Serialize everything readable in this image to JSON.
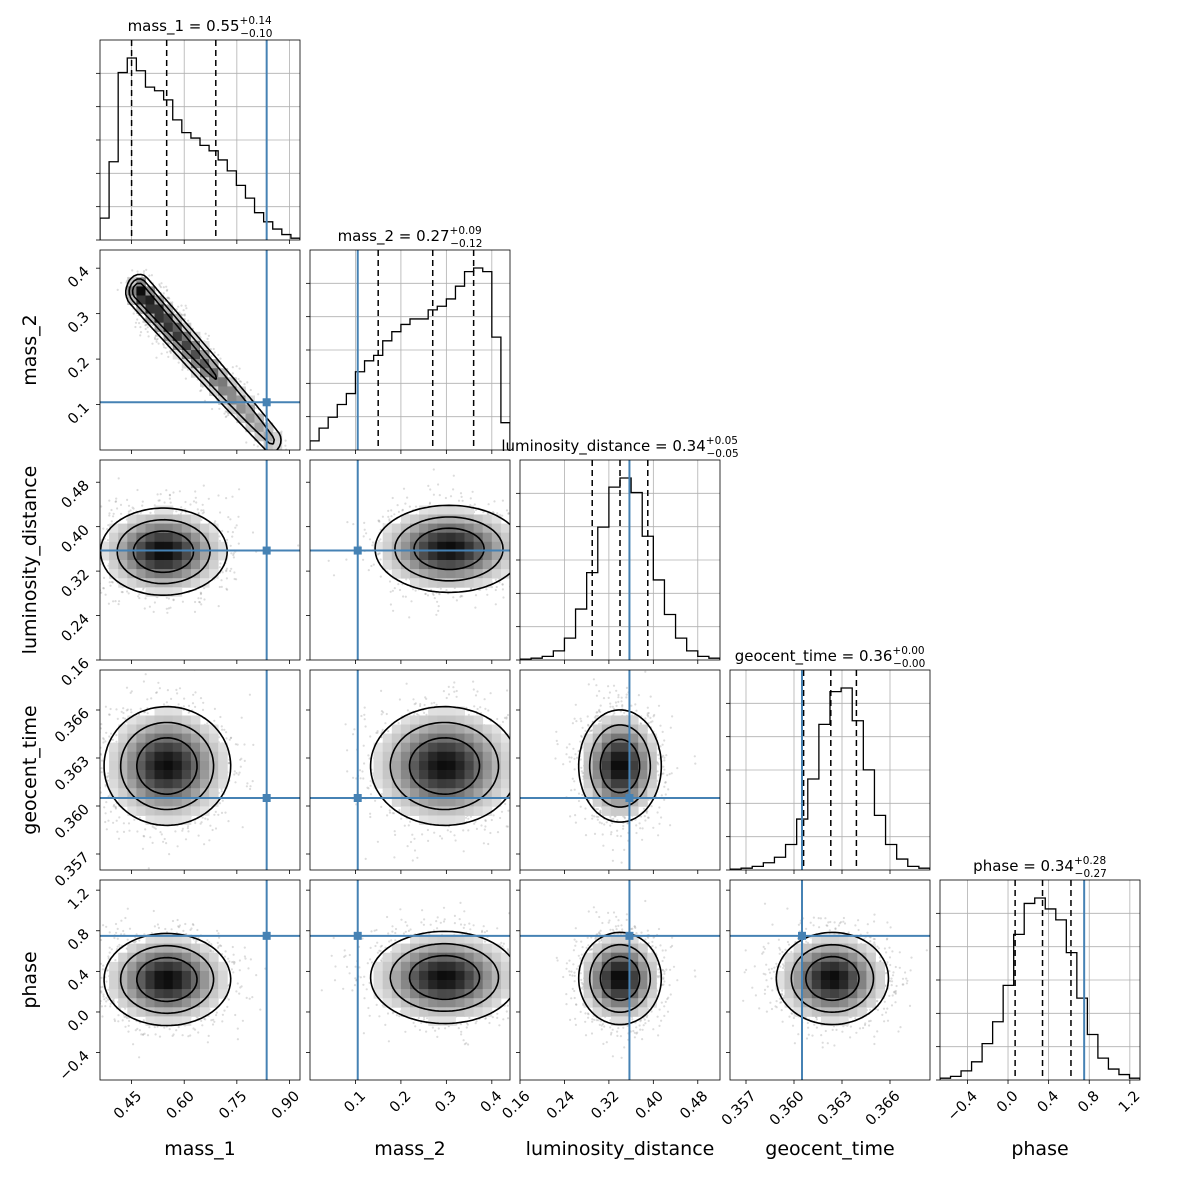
{
  "chart_data": {
    "type": "corner",
    "parameters": [
      "mass_1",
      "mass_2",
      "luminosity_distance",
      "geocent_time",
      "phase"
    ],
    "axis_labels": {
      "mass_1": "mass_1",
      "mass_2": "mass_2",
      "luminosity_distance": "luminosity_distance",
      "geocent_time": "geocent_time",
      "phase": "phase"
    },
    "ranges": {
      "mass_1": [
        0.36,
        0.93
      ],
      "mass_2": [
        0.0,
        0.44
      ],
      "luminosity_distance": [
        0.16,
        0.52
      ],
      "geocent_time": [
        0.356,
        0.3685
      ],
      "phase": [
        -0.67,
        1.3
      ]
    },
    "ticks": {
      "mass_1": [
        0.45,
        0.6,
        0.75,
        0.9
      ],
      "mass_2": [
        0.1,
        0.2,
        0.3,
        0.4
      ],
      "luminosity_distance": [
        0.16,
        0.24,
        0.32,
        0.4,
        0.48
      ],
      "geocent_time": [
        0.357,
        0.36,
        0.363,
        0.366
      ],
      "phase": [
        -0.4,
        0.0,
        0.4,
        0.8,
        1.2
      ]
    },
    "tick_labels": {
      "mass_1": [
        "0.45",
        "0.60",
        "0.75",
        "0.90"
      ],
      "mass_2": [
        "0.1",
        "0.2",
        "0.3",
        "0.4"
      ],
      "luminosity_distance": [
        "0.16",
        "0.24",
        "0.32",
        "0.40",
        "0.48"
      ],
      "geocent_time": [
        "0.357",
        "0.360",
        "0.363",
        "0.366"
      ],
      "phase": [
        "−0.4",
        "0.0",
        "0.4",
        "0.8",
        "1.2"
      ]
    },
    "truths": {
      "mass_1": 0.835,
      "mass_2": 0.105,
      "luminosity_distance": 0.357,
      "geocent_time": 0.3605,
      "phase": 0.75
    },
    "titles": [
      {
        "param": "mass_1",
        "name": "mass_1",
        "median": "0.55",
        "plus": "+0.14",
        "minus": "−0.10"
      },
      {
        "param": "mass_2",
        "name": "mass_2",
        "median": "0.27",
        "plus": "+0.09",
        "minus": "−0.12"
      },
      {
        "param": "luminosity_distance",
        "name": "luminosity_distance",
        "median": "0.34",
        "plus": "+0.05",
        "minus": "−0.05"
      },
      {
        "param": "geocent_time",
        "name": "geocent_time",
        "median": "0.36",
        "plus": "+0.00",
        "minus": "−0.00"
      },
      {
        "param": "phase",
        "name": "phase",
        "median": "0.34",
        "plus": "+0.28",
        "minus": "−0.27"
      }
    ],
    "quantiles": {
      "mass_1": [
        0.45,
        0.55,
        0.69
      ],
      "mass_2": [
        0.15,
        0.27,
        0.36
      ],
      "luminosity_distance": [
        0.29,
        0.34,
        0.39
      ],
      "geocent_time": [
        0.3606,
        0.3623,
        0.3639
      ],
      "phase": [
        0.07,
        0.34,
        0.62
      ]
    },
    "histograms": {
      "mass_1": {
        "range": [
          0.36,
          0.93
        ],
        "counts": [
          0.12,
          0.43,
          0.92,
          1.0,
          0.93,
          0.84,
          0.82,
          0.77,
          0.66,
          0.59,
          0.56,
          0.52,
          0.49,
          0.44,
          0.38,
          0.3,
          0.23,
          0.15,
          0.1,
          0.06,
          0.03,
          0.01
        ]
      },
      "mass_2": {
        "range": [
          0.0,
          0.44
        ],
        "counts": [
          0.05,
          0.12,
          0.18,
          0.25,
          0.31,
          0.43,
          0.49,
          0.52,
          0.6,
          0.65,
          0.69,
          0.72,
          0.72,
          0.77,
          0.79,
          0.83,
          0.9,
          0.98,
          1.0,
          0.98,
          0.62,
          0.15
        ]
      },
      "luminosity_distance": {
        "range": [
          0.16,
          0.52
        ],
        "counts": [
          0.005,
          0.01,
          0.02,
          0.05,
          0.12,
          0.28,
          0.48,
          0.73,
          0.95,
          1.0,
          0.92,
          0.68,
          0.44,
          0.25,
          0.12,
          0.05,
          0.02,
          0.01
        ]
      },
      "geocent_time": {
        "range": [
          0.356,
          0.3685
        ],
        "counts": [
          0.005,
          0.01,
          0.02,
          0.04,
          0.07,
          0.14,
          0.28,
          0.5,
          0.8,
          0.98,
          1.0,
          0.82,
          0.55,
          0.3,
          0.14,
          0.06,
          0.02,
          0.01
        ]
      },
      "phase": {
        "range": [
          -0.67,
          1.3
        ],
        "counts": [
          0.01,
          0.02,
          0.05,
          0.1,
          0.2,
          0.32,
          0.52,
          0.8,
          0.97,
          1.0,
          0.94,
          0.88,
          0.7,
          0.45,
          0.25,
          0.12,
          0.06,
          0.03,
          0.01
        ]
      }
    },
    "joint": [
      {
        "row": 1,
        "col": 0,
        "x": "mass_1",
        "y": "mass_2",
        "shape": "banana",
        "peak": {
          "x": 0.47,
          "y": 0.35
        },
        "tail": {
          "x": 0.85,
          "y": 0.02
        },
        "width": 0.018
      },
      {
        "row": 2,
        "col": 0,
        "x": "mass_1",
        "y": "luminosity_distance",
        "shape": "gaussian",
        "mean": [
          0.52,
          0.355
        ],
        "sd": [
          0.09,
          0.038
        ],
        "skew_x": 0.08
      },
      {
        "row": 2,
        "col": 1,
        "x": "mass_2",
        "y": "luminosity_distance",
        "shape": "gaussian",
        "mean": [
          0.32,
          0.36
        ],
        "sd": [
          0.08,
          0.038
        ],
        "skew_x": -0.06
      },
      {
        "row": 2,
        "col": 2,
        "x": "luminosity_distance",
        "y": "luminosity_distance",
        "shape": "none"
      },
      {
        "row": 3,
        "col": 0,
        "x": "mass_1",
        "y": "geocent_time",
        "shape": "gaussian",
        "mean": [
          0.53,
          0.3625
        ],
        "sd": [
          0.09,
          0.0018
        ],
        "skew_x": 0.08
      },
      {
        "row": 3,
        "col": 1,
        "x": "mass_2",
        "y": "geocent_time",
        "shape": "gaussian",
        "mean": [
          0.31,
          0.3625
        ],
        "sd": [
          0.08,
          0.0018
        ],
        "skew_x": -0.06
      },
      {
        "row": 3,
        "col": 2,
        "x": "luminosity_distance",
        "y": "geocent_time",
        "shape": "gaussian",
        "mean": [
          0.34,
          0.3625
        ],
        "sd": [
          0.036,
          0.0017
        ],
        "skew_x": 0
      },
      {
        "row": 4,
        "col": 0,
        "x": "mass_1",
        "y": "phase",
        "shape": "gaussian",
        "mean": [
          0.53,
          0.32
        ],
        "sd": [
          0.09,
          0.22
        ],
        "skew_x": 0.08
      },
      {
        "row": 4,
        "col": 1,
        "x": "mass_2",
        "y": "phase",
        "shape": "gaussian",
        "mean": [
          0.31,
          0.34
        ],
        "sd": [
          0.08,
          0.22
        ],
        "skew_x": -0.06
      },
      {
        "row": 4,
        "col": 2,
        "x": "luminosity_distance",
        "y": "phase",
        "shape": "gaussian",
        "mean": [
          0.34,
          0.33
        ],
        "sd": [
          0.036,
          0.22
        ],
        "skew_x": 0
      },
      {
        "row": 4,
        "col": 3,
        "x": "geocent_time",
        "y": "phase",
        "shape": "gaussian",
        "mean": [
          0.3624,
          0.33
        ],
        "sd": [
          0.0017,
          0.22
        ],
        "skew_x": 0
      }
    ],
    "colors": {
      "truth": "#4682b4",
      "hist": "#000000",
      "grid": "#b0b0b0",
      "points": "#9a9a9a",
      "contour": "#000000"
    }
  }
}
